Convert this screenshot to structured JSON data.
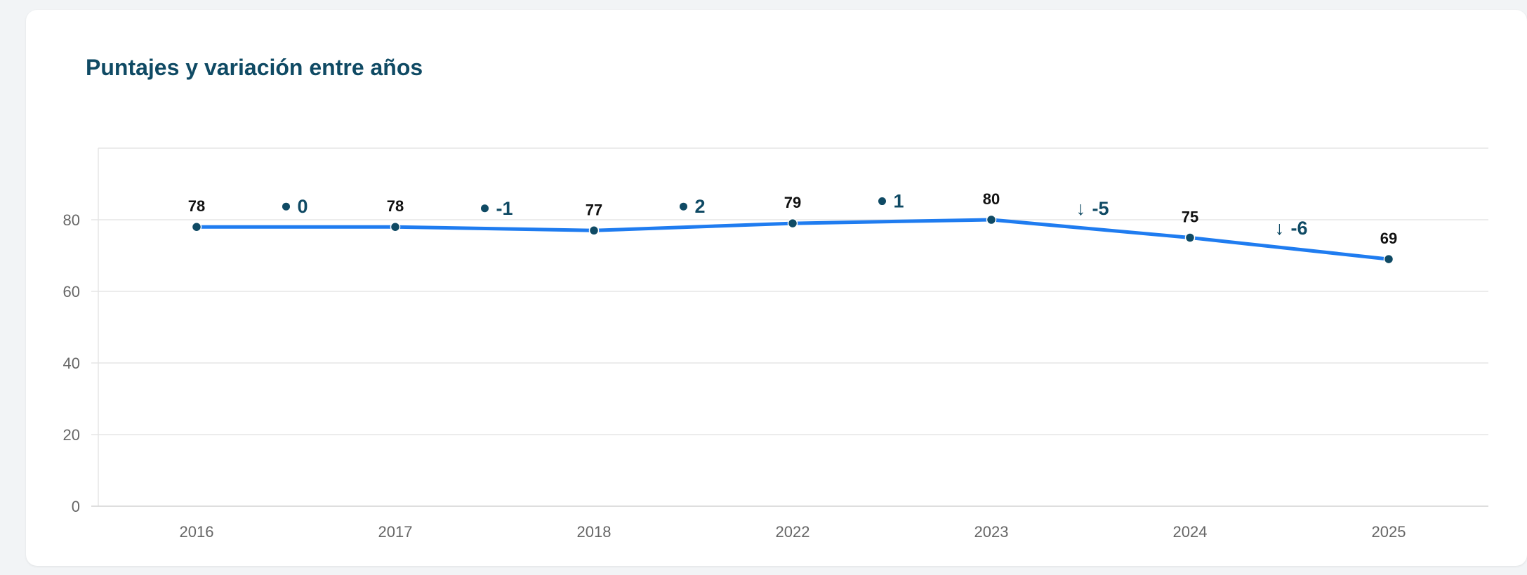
{
  "card": {
    "title": "Puntajes y variación entre años"
  },
  "chart_data": {
    "type": "line",
    "title": "Puntajes y variación entre años",
    "categories": [
      "2016",
      "2017",
      "2018",
      "2022",
      "2023",
      "2024",
      "2025"
    ],
    "values": [
      78,
      78,
      77,
      79,
      80,
      75,
      69
    ],
    "value_labels": [
      "78",
      "78",
      "77",
      "79",
      "80",
      "75",
      "69"
    ],
    "variations": [
      {
        "between": [
          "2016",
          "2017"
        ],
        "value": 0,
        "marker": "dot",
        "label": "0"
      },
      {
        "between": [
          "2017",
          "2018"
        ],
        "value": -1,
        "marker": "dot",
        "label": "-1"
      },
      {
        "between": [
          "2018",
          "2022"
        ],
        "value": 2,
        "marker": "dot",
        "label": "2"
      },
      {
        "between": [
          "2022",
          "2023"
        ],
        "value": 1,
        "marker": "dot",
        "label": "1"
      },
      {
        "between": [
          "2023",
          "2024"
        ],
        "value": -5,
        "marker": "arrow-down",
        "label": "-5"
      },
      {
        "between": [
          "2024",
          "2025"
        ],
        "value": -6,
        "marker": "arrow-down",
        "label": "-6"
      }
    ],
    "y_ticks": [
      "0",
      "20",
      "40",
      "60",
      "80"
    ],
    "ylim": [
      0,
      100
    ],
    "grid": true,
    "legend": "none",
    "colors": {
      "line": "#1f7cf0",
      "point": "#0f4a64",
      "variation": "#0f4a64",
      "value_label": "#111111",
      "grid": "#e5e5e5"
    }
  }
}
